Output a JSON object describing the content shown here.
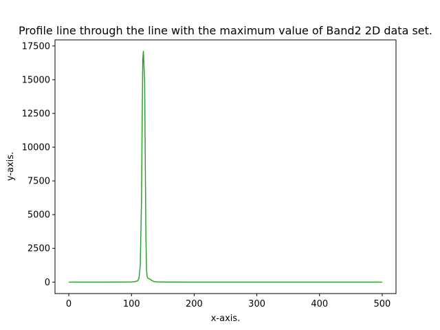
{
  "chart_data": {
    "type": "line",
    "title": "Profile line through the line with the maximum value of Band2 2D data set.",
    "xlabel": "x-axis.",
    "ylabel": "y-axis.",
    "xlim": [
      -22,
      522
    ],
    "ylim": [
      -850,
      17950
    ],
    "xticks": [
      0,
      100,
      200,
      300,
      400,
      500
    ],
    "yticks": [
      0,
      2500,
      5000,
      7500,
      10000,
      12500,
      15000,
      17500
    ],
    "grid": false,
    "series": [
      {
        "color": "#2ca02c",
        "x": [
          0,
          50,
          100,
          105,
          110,
          112,
          114,
          116,
          117,
          118,
          119,
          120,
          121,
          122,
          123,
          124,
          125,
          126,
          127,
          128,
          130,
          133,
          136,
          140,
          150,
          200,
          300,
          400,
          500
        ],
        "y": [
          0,
          0,
          10,
          30,
          100,
          300,
          1200,
          6000,
          11500,
          16500,
          17100,
          16000,
          14800,
          9000,
          3500,
          900,
          400,
          300,
          280,
          250,
          200,
          100,
          40,
          15,
          5,
          0,
          0,
          0,
          0
        ]
      }
    ]
  }
}
